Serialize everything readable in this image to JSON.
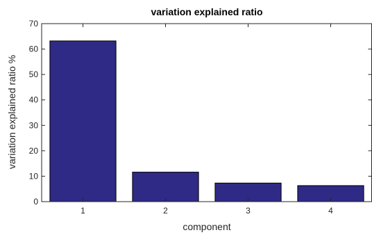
{
  "chart_data": {
    "type": "bar",
    "title": "variation explained ratio",
    "xlabel": "component",
    "ylabel": "variation explained ratio %",
    "categories": [
      "1",
      "2",
      "3",
      "4"
    ],
    "values": [
      63.2,
      11.6,
      7.3,
      6.3
    ],
    "ylim": [
      0,
      70
    ],
    "yticks": [
      0,
      10,
      20,
      30,
      40,
      50,
      60,
      70
    ],
    "grid": false,
    "legend": "none",
    "bar_color": "#2e2a85",
    "bar_edge_color": "#000000"
  }
}
